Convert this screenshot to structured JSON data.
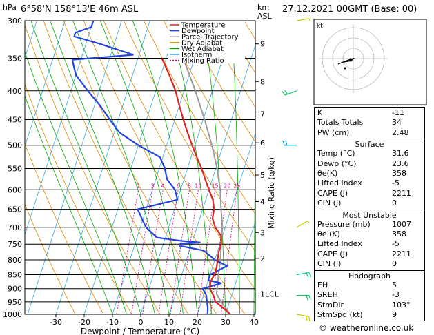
{
  "header": {
    "location": "6°58'N 158°13'E 46m ASL",
    "datetime": "27.12.2021 00GMT (Base: 00)",
    "hpa_label": "hPa",
    "km_label": "km",
    "asl_label": "ASL"
  },
  "legend": [
    {
      "name": "Temperature",
      "color": "#dd2222",
      "dash": ""
    },
    {
      "name": "Dewpoint",
      "color": "#2244dd",
      "dash": ""
    },
    {
      "name": "Parcel Trajectory",
      "color": "#999999",
      "dash": ""
    },
    {
      "name": "Dry Adiabat",
      "color": "#e08a00",
      "dash": ""
    },
    {
      "name": "Wet Adiabat",
      "color": "#00aa00",
      "dash": ""
    },
    {
      "name": "Isotherm",
      "color": "#33a6e0",
      "dash": ""
    },
    {
      "name": "Mixing Ratio",
      "color": "#cc0077",
      "dash": "2,2"
    }
  ],
  "chart_data": {
    "type": "line",
    "xlabel": "Dewpoint / Temperature (°C)",
    "ylabel_right": "Mixing Ratio (g/kg)",
    "x_ticks": [
      -30,
      -20,
      -10,
      0,
      10,
      20,
      30,
      40
    ],
    "pressure_levels": [
      300,
      350,
      400,
      450,
      500,
      550,
      600,
      650,
      700,
      750,
      800,
      850,
      900,
      950,
      1000
    ],
    "km_ticks": [
      {
        "label": "9",
        "p": 330
      },
      {
        "label": "8",
        "p": 385
      },
      {
        "label": "7",
        "p": 440
      },
      {
        "label": "6",
        "p": 495
      },
      {
        "label": "5",
        "p": 565
      },
      {
        "label": "4",
        "p": 630
      },
      {
        "label": "3",
        "p": 715
      },
      {
        "label": "2",
        "p": 795
      },
      {
        "label": "1LCL",
        "p": 920
      }
    ],
    "mixing_ratio_labels": [
      "2",
      "3",
      "4",
      "6",
      "8",
      "10",
      "15",
      "20",
      "25"
    ],
    "mixing_ratio_values": [
      2,
      3,
      4,
      6,
      8,
      10,
      15,
      20,
      25
    ],
    "series": [
      {
        "name": "Temperature",
        "color": "#dd2222",
        "points": [
          [
            1000,
            31.6
          ],
          [
            975,
            28.5
          ],
          [
            950,
            25.0
          ],
          [
            925,
            23.5
          ],
          [
            900,
            21.5
          ],
          [
            875,
            21.0
          ],
          [
            850,
            21.5
          ],
          [
            825,
            21.5
          ],
          [
            800,
            21.0
          ],
          [
            775,
            20.5
          ],
          [
            750,
            20.5
          ],
          [
            725,
            19.5
          ],
          [
            700,
            16.5
          ],
          [
            675,
            14.5
          ],
          [
            650,
            14.0
          ],
          [
            625,
            12.5
          ],
          [
            600,
            10.0
          ],
          [
            575,
            7.5
          ],
          [
            550,
            5.0
          ],
          [
            525,
            2.0
          ],
          [
            500,
            -1.0
          ],
          [
            475,
            -4.0
          ],
          [
            450,
            -7.0
          ],
          [
            425,
            -10.0
          ],
          [
            400,
            -13.0
          ],
          [
            375,
            -17.0
          ],
          [
            350,
            -21.5
          ]
        ]
      },
      {
        "name": "Dewpoint",
        "color": "#2244dd",
        "points": [
          [
            1000,
            23.6
          ],
          [
            975,
            23.0
          ],
          [
            950,
            22.0
          ],
          [
            925,
            21.0
          ],
          [
            900,
            19.0
          ],
          [
            880,
            25.0
          ],
          [
            870,
            20.0
          ],
          [
            850,
            20.0
          ],
          [
            820,
            25.0
          ],
          [
            800,
            20.0
          ],
          [
            770,
            15.0
          ],
          [
            755,
            6.0
          ],
          [
            748,
            6.0
          ],
          [
            745,
            13.0
          ],
          [
            740,
            6.0
          ],
          [
            730,
            -3.0
          ],
          [
            700,
            -8.0
          ],
          [
            680,
            -10.0
          ],
          [
            650,
            -13.0
          ],
          [
            625,
            0.0
          ],
          [
            600,
            -2.0
          ],
          [
            575,
            -6.0
          ],
          [
            550,
            -8.0
          ],
          [
            525,
            -11.0
          ],
          [
            500,
            -20.0
          ],
          [
            475,
            -28.0
          ],
          [
            450,
            -33.0
          ],
          [
            425,
            -38.0
          ],
          [
            400,
            -44.0
          ],
          [
            375,
            -50.0
          ],
          [
            360,
            -52.0
          ],
          [
            352,
            -53.0
          ],
          [
            345,
            -32.0
          ],
          [
            330,
            -45.0
          ],
          [
            320,
            -55.0
          ],
          [
            315,
            -55.0
          ],
          [
            308,
            -50.0
          ],
          [
            300,
            -50.0
          ]
        ]
      },
      {
        "name": "Parcel Trajectory",
        "color": "#999999",
        "points": [
          [
            1000,
            31.6
          ],
          [
            950,
            27.0
          ],
          [
            920,
            24.5
          ],
          [
            850,
            23.0
          ],
          [
            800,
            22.0
          ],
          [
            750,
            20.5
          ],
          [
            700,
            19.0
          ],
          [
            650,
            16.5
          ],
          [
            600,
            14.0
          ],
          [
            550,
            10.5
          ],
          [
            500,
            6.0
          ],
          [
            450,
            0.5
          ],
          [
            400,
            -6.0
          ],
          [
            350,
            -14.0
          ]
        ]
      }
    ]
  },
  "hodograph": {
    "label": "kt"
  },
  "wind_barbs": [
    {
      "p": 300,
      "dir": 80,
      "spd": 5,
      "color": "#cccc00"
    },
    {
      "p": 400,
      "dir": 250,
      "spd": 10,
      "color": "#00cc66"
    },
    {
      "p": 500,
      "dir": 270,
      "spd": 10,
      "color": "#00aacc"
    },
    {
      "p": 700,
      "dir": 60,
      "spd": 5,
      "color": "#cccc00"
    },
    {
      "p": 850,
      "dir": 80,
      "spd": 10,
      "color": "#00cc99"
    },
    {
      "p": 925,
      "dir": 90,
      "spd": 10,
      "color": "#00cc66"
    },
    {
      "p": 1000,
      "dir": 100,
      "spd": 9,
      "color": "#cccc00"
    }
  ],
  "indices": {
    "rows": [
      {
        "label": "K",
        "value": "-11"
      },
      {
        "label": "Totals Totals",
        "value": "34"
      },
      {
        "label": "PW (cm)",
        "value": "2.48"
      }
    ]
  },
  "surface": {
    "title": "Surface",
    "rows": [
      {
        "label": "Temp (°C)",
        "value": "31.6"
      },
      {
        "label": "Dewp (°C)",
        "value": "23.6"
      },
      {
        "label": "θe(K)",
        "value": "358"
      },
      {
        "label": "Lifted Index",
        "value": "-5"
      },
      {
        "label": "CAPE (J)",
        "value": "2211"
      },
      {
        "label": "CIN (J)",
        "value": "0"
      }
    ]
  },
  "most_unstable": {
    "title": "Most Unstable",
    "rows": [
      {
        "label": "Pressure (mb)",
        "value": "1007"
      },
      {
        "label": "θe (K)",
        "value": "358"
      },
      {
        "label": "Lifted Index",
        "value": "-5"
      },
      {
        "label": "CAPE (J)",
        "value": "2211"
      },
      {
        "label": "CIN (J)",
        "value": "0"
      }
    ]
  },
  "hodograph_box": {
    "title": "Hodograph",
    "rows": [
      {
        "label": "EH",
        "value": "5"
      },
      {
        "label": "SREH",
        "value": "-3"
      },
      {
        "label": "StmDir",
        "value": "103°"
      },
      {
        "label": "StmSpd (kt)",
        "value": "9"
      }
    ]
  },
  "footer": {
    "copyright": "© weatheronline.co.uk"
  }
}
